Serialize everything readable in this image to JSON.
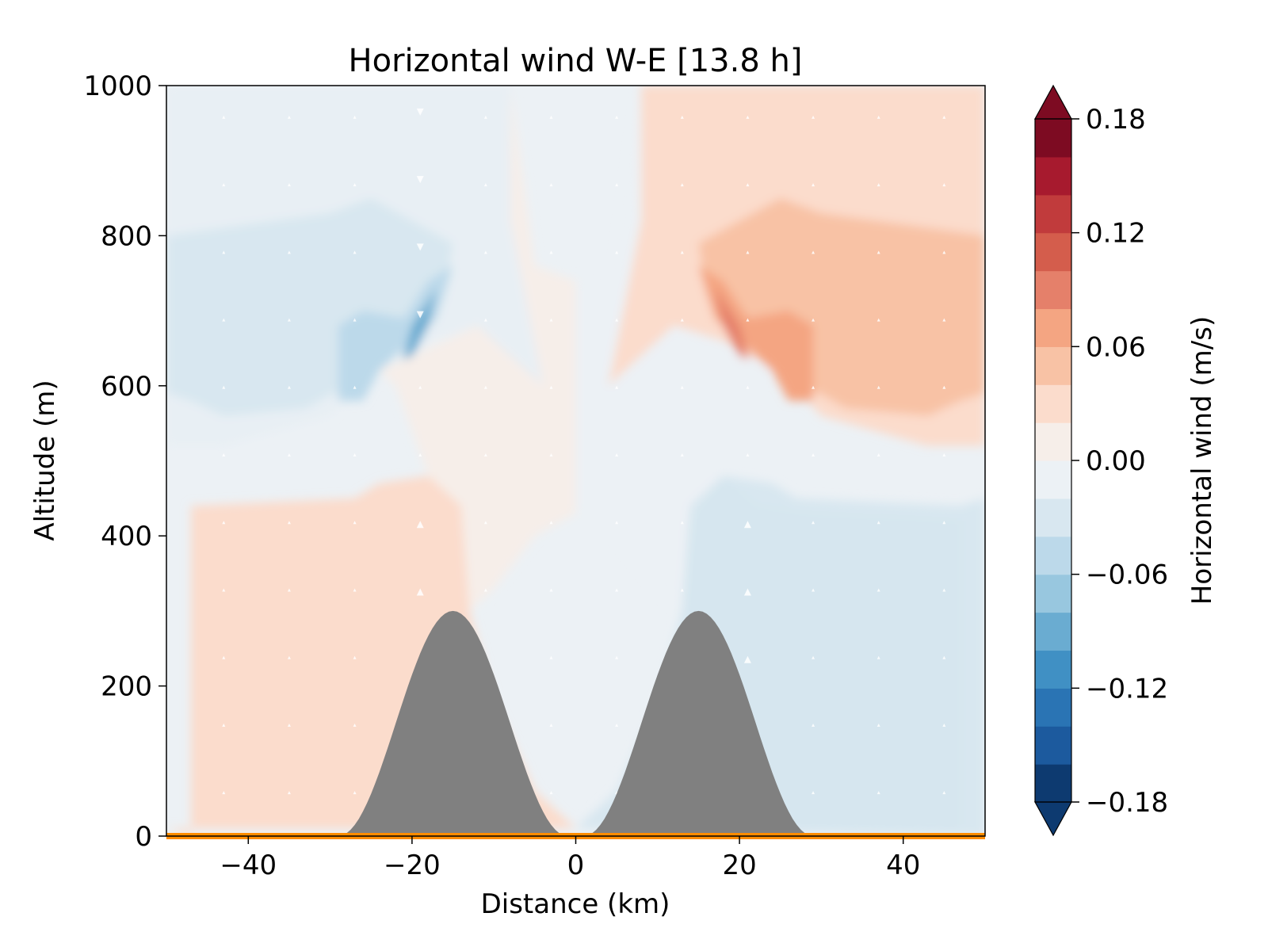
{
  "chart_data": {
    "type": "heatmap",
    "title": "Horizontal wind W-E [13.8 h]",
    "xlabel": "Distance (km)",
    "ylabel": "Altitude (m)",
    "xlim": [
      -50,
      50
    ],
    "ylim": [
      0,
      1000
    ],
    "xticks": [
      -40,
      -20,
      0,
      20,
      40
    ],
    "xtick_labels": [
      "−40",
      "−20",
      "0",
      "20",
      "40"
    ],
    "yticks": [
      0,
      200,
      400,
      600,
      800,
      1000
    ],
    "ytick_labels": [
      "0",
      "200",
      "400",
      "600",
      "800",
      "1000"
    ],
    "grid": false,
    "colorbar": {
      "label": "Horizontal wind (m/s)",
      "range": [
        -0.18,
        0.18
      ],
      "ticks": [
        -0.18,
        -0.12,
        -0.06,
        0.0,
        0.06,
        0.12,
        0.18
      ],
      "tick_labels": [
        "−0.18",
        "−0.12",
        "−0.06",
        "0.00",
        "0.06",
        "0.12",
        "0.18"
      ],
      "levels": 18,
      "colors": [
        "#0d3a70",
        "#1c5a9e",
        "#2a74b4",
        "#4090c4",
        "#6aacd1",
        "#98c7df",
        "#bcd9ea",
        "#d8e7f0",
        "#ecf1f5",
        "#f6eee9",
        "#fbdccc",
        "#f8c2a5",
        "#f4a582",
        "#e5806a",
        "#d45d4c",
        "#c13b3c",
        "#a71a2e",
        "#7d0b22"
      ],
      "extend": "both"
    },
    "terrain": {
      "color": "#808080",
      "ground_line_color": "#ff8c00",
      "peaks": [
        {
          "center_km": -15,
          "height_m": 300,
          "halfwidth_km": 14
        },
        {
          "center_km": 15,
          "height_m": 300,
          "halfwidth_km": 14
        }
      ]
    }
  }
}
